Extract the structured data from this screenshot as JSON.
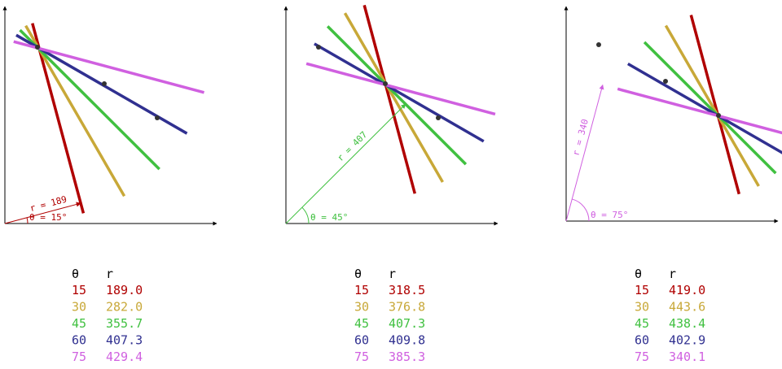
{
  "panels": [
    {
      "annotation": {
        "r_label": "r = 189",
        "theta_label": "θ = 15°"
      },
      "table": {
        "header": [
          "θ",
          "r"
        ],
        "rows": [
          [
            15,
            "189.0"
          ],
          [
            30,
            "282.0"
          ],
          [
            45,
            "355.7"
          ],
          [
            60,
            "407.3"
          ],
          [
            75,
            "429.4"
          ]
        ]
      }
    },
    {
      "annotation": {
        "r_label": "r = 407",
        "theta_label": "θ = 45°"
      },
      "table": {
        "header": [
          "θ",
          "r"
        ],
        "rows": [
          [
            15,
            "318.5"
          ],
          [
            30,
            "376.8"
          ],
          [
            45,
            "407.3"
          ],
          [
            60,
            "409.8"
          ],
          [
            75,
            "385.3"
          ]
        ]
      }
    },
    {
      "annotation": {
        "r_label": "r = 340",
        "theta_label": "θ = 75°"
      },
      "table": {
        "header": [
          "θ",
          "r"
        ],
        "rows": [
          [
            15,
            "419.0"
          ],
          [
            30,
            "443.6"
          ],
          [
            45,
            "438.4"
          ],
          [
            60,
            "402.9"
          ],
          [
            75,
            "340.1"
          ]
        ]
      }
    }
  ]
}
